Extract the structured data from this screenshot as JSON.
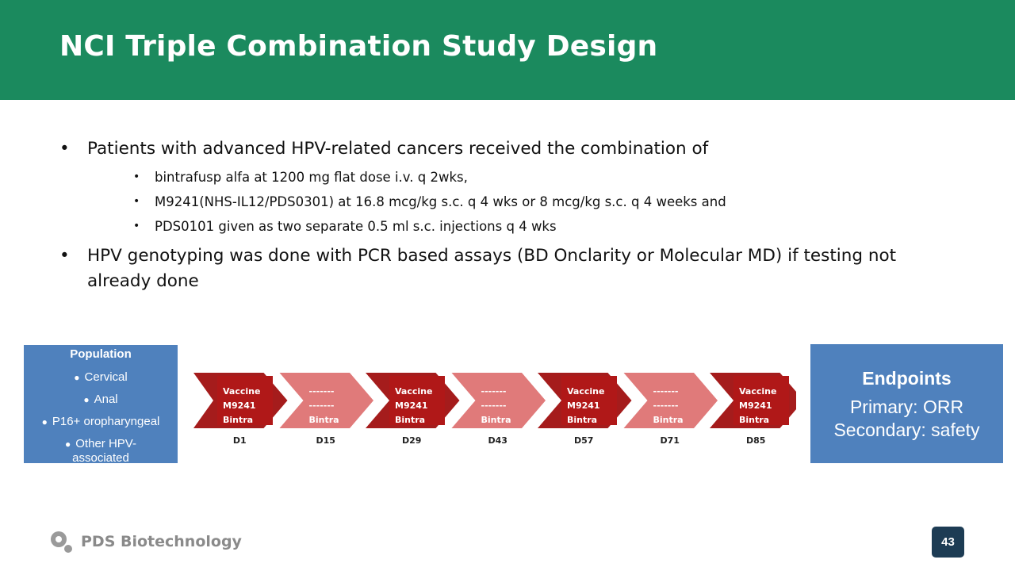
{
  "slide": {
    "title": "NCI Triple Combination Study Design",
    "page_number": "43",
    "brand_colors": {
      "header": "#1b8a5e",
      "box": "#4f81bd",
      "arrow_dark": "#a51c1c",
      "arrow_light": "#e07a7a"
    }
  },
  "bullets": [
    {
      "text": "Patients with advanced HPV-related cancers received the combination of",
      "sub": [
        "bintrafusp alfa at 1200 mg flat dose i.v. q 2wks,",
        "M9241(NHS-IL12/PDS0301) at 16.8 mcg/kg s.c. q 4 wks or 8 mcg/kg s.c. q 4 weeks and",
        "PDS0101 given as two separate 0.5 ml s.c. injections q 4 wks"
      ]
    },
    {
      "text": "HPV genotyping was done with PCR based assays (BD Onclarity or Molecular MD) if testing not already done"
    }
  ],
  "population": {
    "title": "Population",
    "items": [
      "Cervical",
      "Anal",
      "P16+ oropharyngeal",
      "Other HPV-associated"
    ]
  },
  "endpoints": {
    "title": "Endpoints",
    "primary": "Primary: ORR",
    "secondary": "Secondary: safety"
  },
  "timeline": {
    "steps": [
      {
        "day": "D1",
        "lines": [
          "Vaccine",
          "M9241",
          "Bintra"
        ],
        "kind": "dark"
      },
      {
        "day": "D15",
        "lines": [
          "-------",
          "-------",
          "Bintra"
        ],
        "kind": "light"
      },
      {
        "day": "D29",
        "lines": [
          "Vaccine",
          "M9241",
          "Bintra"
        ],
        "kind": "dark"
      },
      {
        "day": "D43",
        "lines": [
          "-------",
          "-------",
          "Bintra"
        ],
        "kind": "light"
      },
      {
        "day": "D57",
        "lines": [
          "Vaccine",
          "M9241",
          "Bintra"
        ],
        "kind": "dark"
      },
      {
        "day": "D71",
        "lines": [
          "-------",
          "-------",
          "Bintra"
        ],
        "kind": "light"
      },
      {
        "day": "D85",
        "lines": [
          "Vaccine",
          "M9241",
          "Bintra"
        ],
        "kind": "dark"
      }
    ]
  },
  "footer": {
    "brand": "PDS Biotechnology"
  }
}
